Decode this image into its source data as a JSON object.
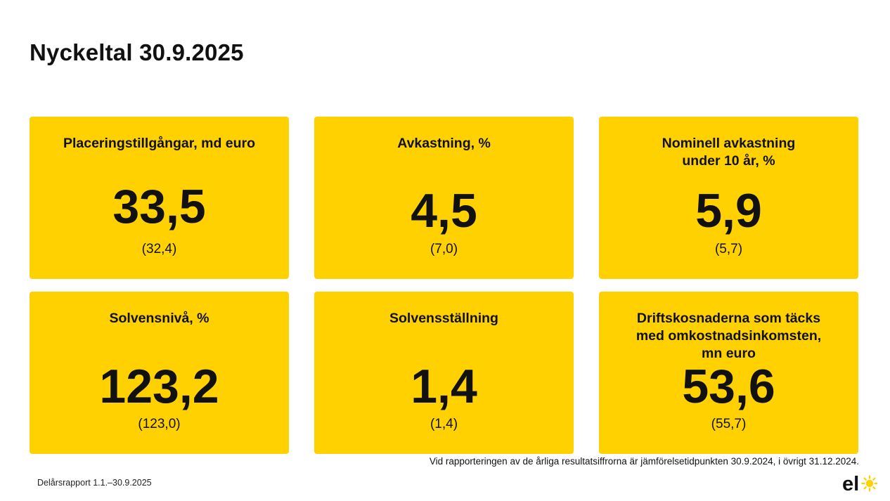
{
  "page": {
    "title": "Nyckeltal 30.9.2025"
  },
  "cards": [
    {
      "label": "Placeringstillgångar, md euro",
      "value": "33,5",
      "previous": "(32,4)"
    },
    {
      "label": "Avkastning, %",
      "value": "4,5",
      "previous": "(7,0)"
    },
    {
      "label": "Nominell avkastning\nunder 10 år, %",
      "value": "5,9",
      "previous": "(5,7)"
    },
    {
      "label": "Solvensnivå, %",
      "value": "123,2",
      "previous": "(123,0)"
    },
    {
      "label": "Solvensställning",
      "value": "1,4",
      "previous": "(1,4)"
    },
    {
      "label": "Driftskosnaderna som täcks\nmed omkostnadsinkomsten,\nmn euro",
      "value": "53,6",
      "previous": "(55,7)"
    }
  ],
  "footnote": "Vid rapporteringen av de årliga resultatsiffrorna är jämförelsetidpunkten 30.9.2024, i övrigt 31.12.2024.",
  "footer": {
    "report": "Delårsrapport 1.1.–30.9.2025",
    "logo_text": "el"
  },
  "colors": {
    "card": "#FFD100",
    "text": "#111111",
    "logo_sun": "#FFD100"
  }
}
